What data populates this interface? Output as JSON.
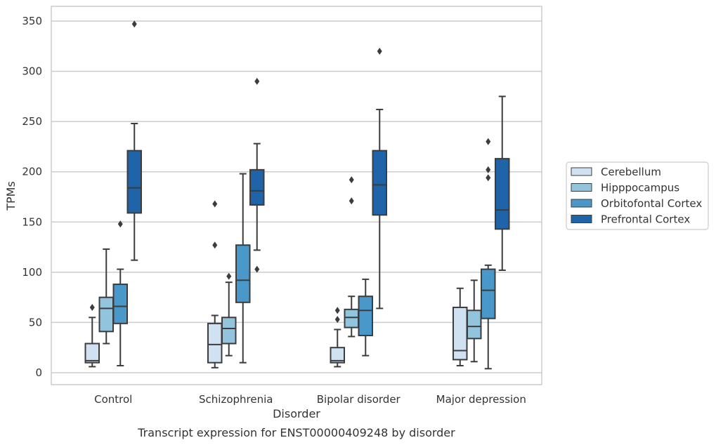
{
  "chart_data": {
    "type": "box",
    "xlabel": "Disorder",
    "ylabel": "TPMs",
    "caption": "Transcript expression for ENST00000409248 by disorder",
    "ylim": [
      -12,
      365
    ],
    "yticks": [
      0,
      50,
      100,
      150,
      200,
      250,
      300,
      350
    ],
    "grid": "horizontal",
    "legend_position": "right",
    "categories": [
      "Control",
      "Schizophrenia",
      "Bipolar disorder",
      "Major depression"
    ],
    "colors": {
      "Cerebellum": "#d0e1f2",
      "Hipppocampus": "#93c4de",
      "Orbitofontal Cortex": "#4a98c9",
      "Prefrontal Cortex": "#1f63a8"
    },
    "series": [
      {
        "name": "Cerebellum",
        "boxes": [
          {
            "whisker_low": 6,
            "q1": 10,
            "median": 12,
            "q3": 29,
            "whisker_high": 55,
            "outliers": [
              65
            ]
          },
          {
            "whisker_low": 5,
            "q1": 10,
            "median": 28,
            "q3": 49,
            "whisker_high": 57,
            "outliers": [
              127,
              168
            ]
          },
          {
            "whisker_low": 6,
            "q1": 10,
            "median": 12,
            "q3": 25,
            "whisker_high": 43,
            "outliers": [
              53,
              62
            ]
          },
          {
            "whisker_low": 7,
            "q1": 13,
            "median": 22,
            "q3": 65,
            "whisker_high": 84,
            "outliers": []
          }
        ]
      },
      {
        "name": "Hipppocampus",
        "boxes": [
          {
            "whisker_low": 29,
            "q1": 41,
            "median": 64,
            "q3": 75,
            "whisker_high": 123,
            "outliers": []
          },
          {
            "whisker_low": 17,
            "q1": 29,
            "median": 44,
            "q3": 55,
            "whisker_high": 90,
            "outliers": [
              96
            ]
          },
          {
            "whisker_low": 36,
            "q1": 45,
            "median": 55,
            "q3": 63,
            "whisker_high": 76,
            "outliers": [
              171,
              192
            ]
          },
          {
            "whisker_low": 11,
            "q1": 34,
            "median": 46,
            "q3": 62,
            "whisker_high": 92,
            "outliers": []
          }
        ]
      },
      {
        "name": "Orbitofontal Cortex",
        "boxes": [
          {
            "whisker_low": 7,
            "q1": 49,
            "median": 66,
            "q3": 88,
            "whisker_high": 103,
            "outliers": [
              148
            ]
          },
          {
            "whisker_low": 10,
            "q1": 70,
            "median": 92,
            "q3": 127,
            "whisker_high": 198,
            "outliers": []
          },
          {
            "whisker_low": 17,
            "q1": 37,
            "median": 62,
            "q3": 76,
            "whisker_high": 93,
            "outliers": []
          },
          {
            "whisker_low": 4,
            "q1": 54,
            "median": 82,
            "q3": 103,
            "whisker_high": 107,
            "outliers": [
              194,
              202,
              230
            ]
          }
        ]
      },
      {
        "name": "Prefrontal Cortex",
        "boxes": [
          {
            "whisker_low": 112,
            "q1": 159,
            "median": 184,
            "q3": 221,
            "whisker_high": 248,
            "outliers": [
              347
            ]
          },
          {
            "whisker_low": 122,
            "q1": 167,
            "median": 181,
            "q3": 202,
            "whisker_high": 228,
            "outliers": [
              103,
              290
            ]
          },
          {
            "whisker_low": 64,
            "q1": 157,
            "median": 187,
            "q3": 221,
            "whisker_high": 262,
            "outliers": [
              320
            ]
          },
          {
            "whisker_low": 102,
            "q1": 143,
            "median": 162,
            "q3": 213,
            "whisker_high": 275,
            "outliers": []
          }
        ]
      }
    ]
  }
}
